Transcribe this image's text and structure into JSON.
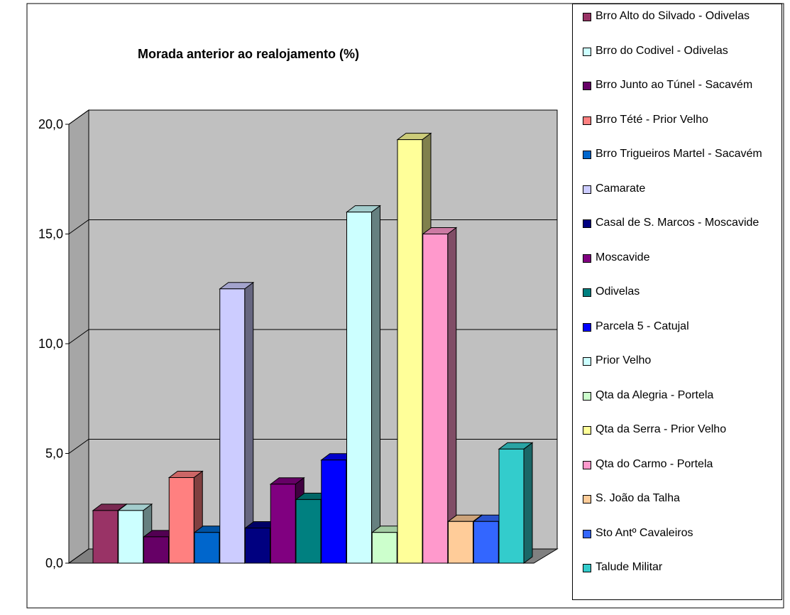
{
  "chart_data": {
    "type": "bar",
    "title": "Morada anterior ao realojamento (%)",
    "ylim": [
      0,
      20
    ],
    "yticks": [
      {
        "value": 0,
        "label": "0,0"
      },
      {
        "value": 5,
        "label": "5,0"
      },
      {
        "value": 10,
        "label": "10,0"
      },
      {
        "value": 15,
        "label": "15,0"
      },
      {
        "value": 20,
        "label": "20,0"
      }
    ],
    "grid": true,
    "legend": "right",
    "series": [
      {
        "name": "Brro Alto do Silvado - Odivelas",
        "color": "#993366",
        "values": [
          2.4
        ]
      },
      {
        "name": "Brro do Codivel - Odivelas",
        "color": "#ccffff",
        "values": [
          2.4
        ]
      },
      {
        "name": "Brro Junto ao Túnel - Sacavém",
        "color": "#660066",
        "values": [
          1.2
        ]
      },
      {
        "name": "Brro Tété - Prior Velho",
        "color": "#ff8080",
        "values": [
          3.9
        ]
      },
      {
        "name": "Brro Trigueiros Martel - Sacavém",
        "color": "#0066cc",
        "values": [
          1.4
        ]
      },
      {
        "name": "Camarate",
        "color": "#ccccff",
        "values": [
          12.5
        ]
      },
      {
        "name": "Casal de S. Marcos - Moscavide",
        "color": "#000080",
        "values": [
          1.6
        ]
      },
      {
        "name": "Moscavide",
        "color": "#800080",
        "values": [
          3.6
        ]
      },
      {
        "name": "Odivelas",
        "color": "#008080",
        "values": [
          2.9
        ]
      },
      {
        "name": "Parcela 5 - Catujal",
        "color": "#0000ff",
        "values": [
          4.7
        ]
      },
      {
        "name": "Prior Velho",
        "color": "#ccffff",
        "values": [
          16.0
        ]
      },
      {
        "name": "Qta da Alegria - Portela",
        "color": "#ccffcc",
        "values": [
          1.4
        ]
      },
      {
        "name": "Qta da Serra - Prior Velho",
        "color": "#ffff99",
        "values": [
          19.3
        ]
      },
      {
        "name": "Qta do Carmo - Portela",
        "color": "#ff99cc",
        "values": [
          15.0
        ]
      },
      {
        "name": "S. João da Talha",
        "color": "#ffcc99",
        "values": [
          1.9
        ]
      },
      {
        "name": "Sto Antº Cavaleiros",
        "color": "#3366ff",
        "values": [
          1.9
        ]
      },
      {
        "name": "Talude Militar",
        "color": "#33cccc",
        "values": [
          5.2
        ]
      }
    ]
  }
}
